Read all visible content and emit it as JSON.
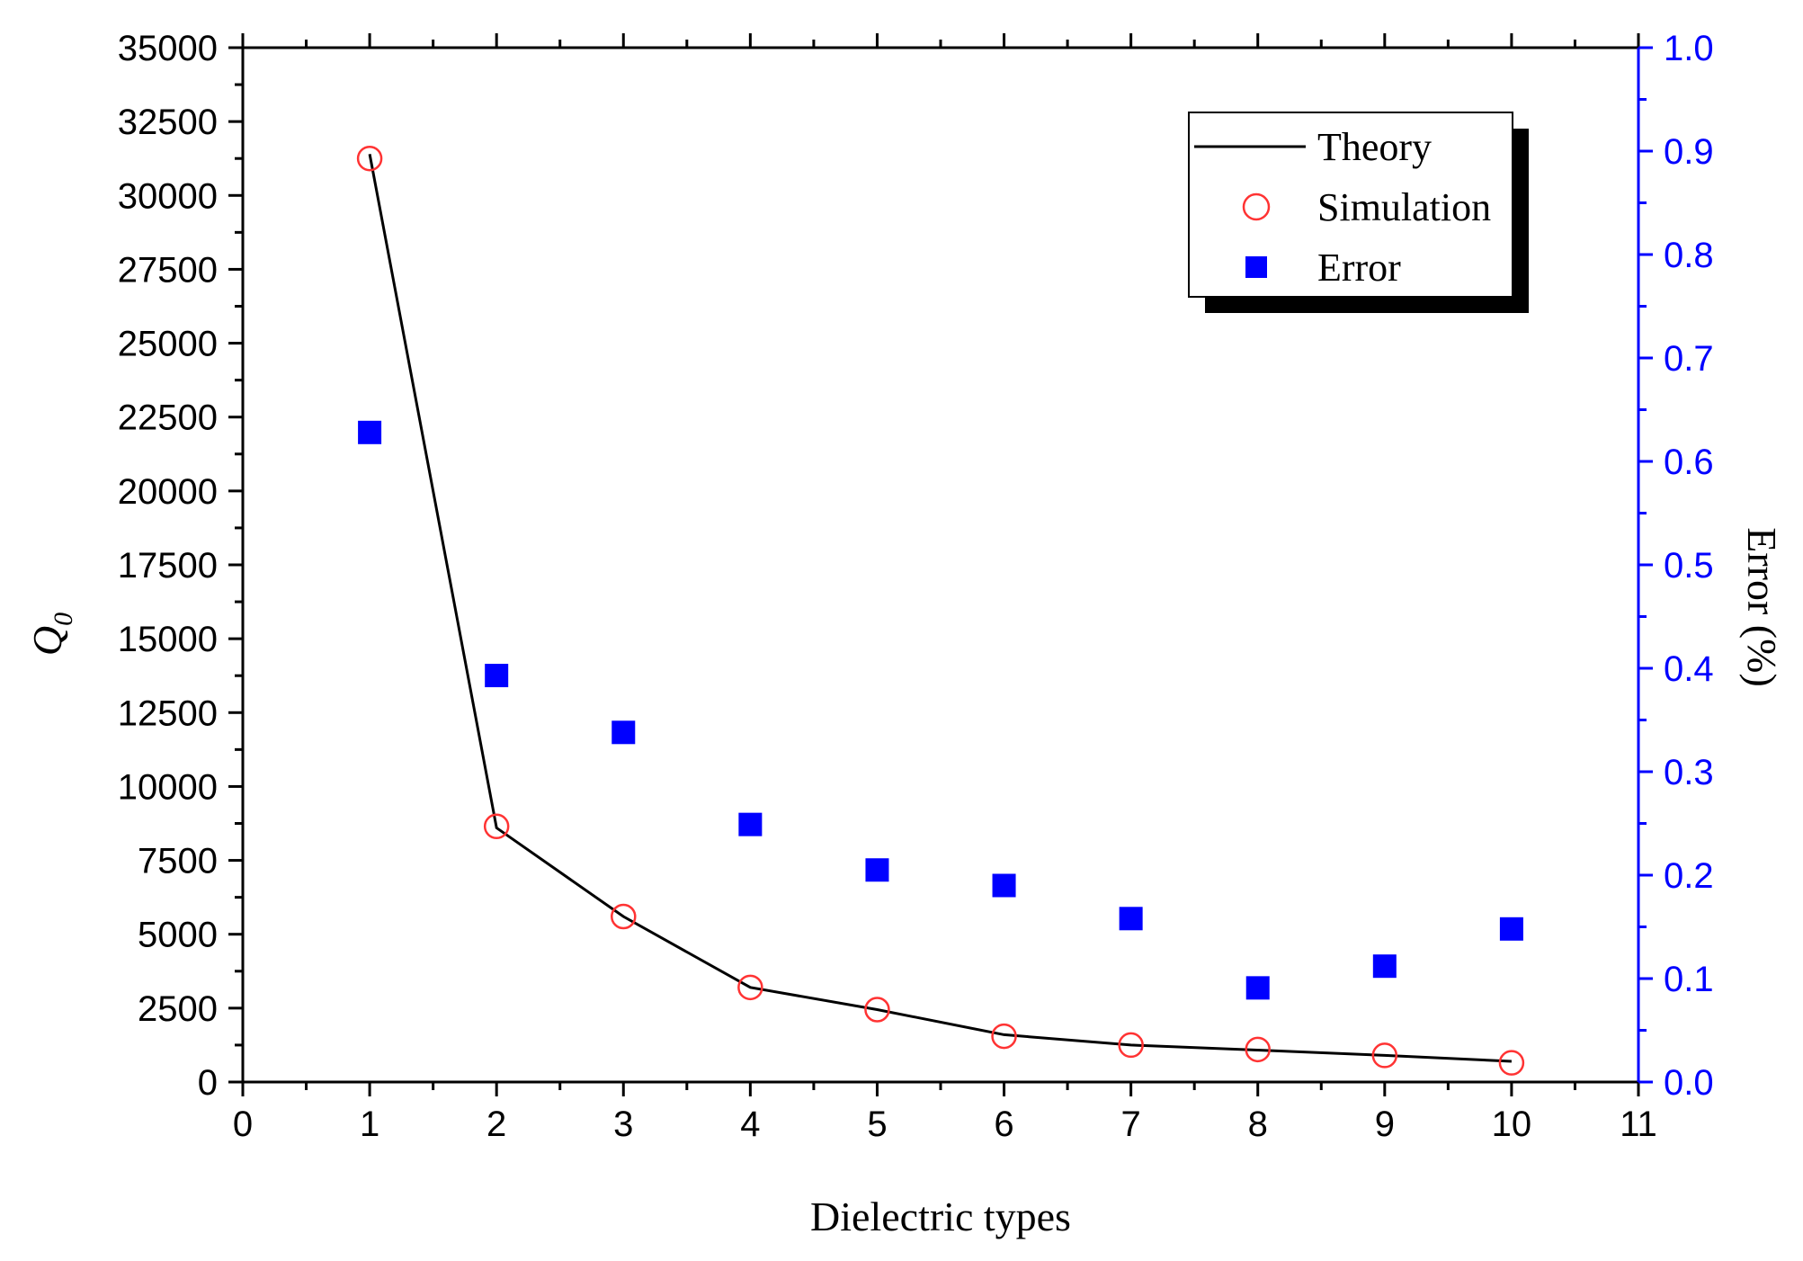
{
  "chart_data": {
    "type": "line",
    "title": "",
    "xlabel": "Dielectric types",
    "ylabel": "Q",
    "ylabel_subscript": "0",
    "y2label": "Error (%)",
    "xlim": [
      0,
      11
    ],
    "ylim": [
      0,
      35000
    ],
    "y2lim": [
      0.0,
      1.0
    ],
    "x_ticks": [
      "0",
      "1",
      "2",
      "3",
      "4",
      "5",
      "6",
      "7",
      "8",
      "9",
      "10",
      "11"
    ],
    "y_ticks": [
      "0",
      "2500",
      "5000",
      "7500",
      "10000",
      "12500",
      "15000",
      "17500",
      "20000",
      "22500",
      "25000",
      "27500",
      "30000",
      "32500",
      "35000"
    ],
    "y2_ticks": [
      "0.0",
      "0.1",
      "0.2",
      "0.3",
      "0.4",
      "0.5",
      "0.6",
      "0.7",
      "0.8",
      "0.9",
      "1.0"
    ],
    "x": [
      1,
      2,
      3,
      4,
      5,
      6,
      7,
      8,
      9,
      10
    ],
    "series": [
      {
        "name": "Theory",
        "axis": "left",
        "style": "line",
        "color": "#000000",
        "values": [
          31400,
          8600,
          5600,
          3200,
          2450,
          1600,
          1250,
          1080,
          900,
          700
        ]
      },
      {
        "name": "Simulation",
        "axis": "left",
        "style": "open-circle",
        "color": "#ff3333",
        "values": [
          31250,
          8650,
          5600,
          3200,
          2450,
          1550,
          1250,
          1100,
          900,
          650
        ]
      },
      {
        "name": "Error",
        "axis": "right",
        "style": "filled-square",
        "color": "#0000ff",
        "values": [
          0.628,
          0.393,
          0.338,
          0.249,
          0.205,
          0.19,
          0.158,
          0.091,
          0.112,
          0.148
        ]
      }
    ],
    "legend_position": "top-right",
    "grid": false,
    "colors": {
      "axis": "#000000",
      "right_axis": "#0000ff"
    }
  }
}
